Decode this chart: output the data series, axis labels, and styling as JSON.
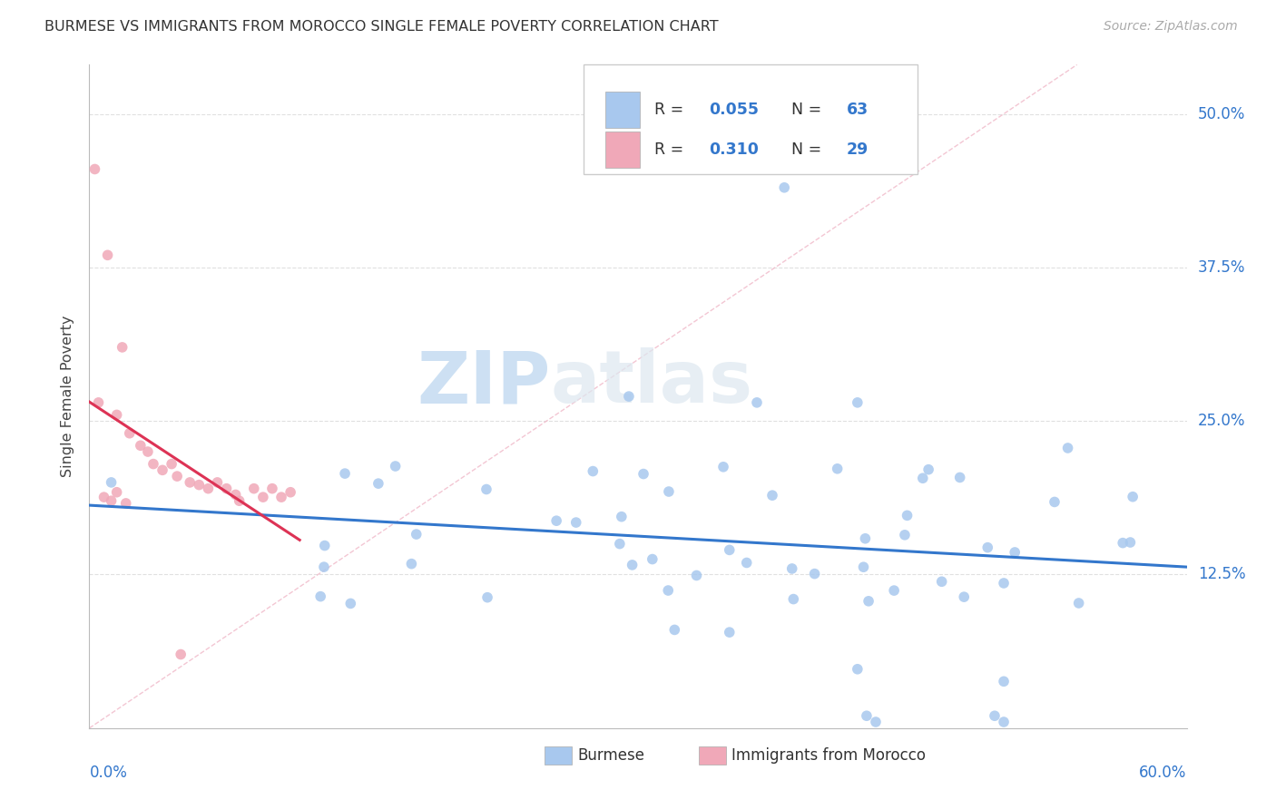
{
  "title": "BURMESE VS IMMIGRANTS FROM MOROCCO SINGLE FEMALE POVERTY CORRELATION CHART",
  "source": "Source: ZipAtlas.com",
  "ylabel": "Single Female Poverty",
  "ytick_vals": [
    0.125,
    0.25,
    0.375,
    0.5
  ],
  "ytick_labels": [
    "12.5%",
    "25.0%",
    "37.5%",
    "50.0%"
  ],
  "xmin": 0.0,
  "xmax": 0.6,
  "ymin": 0.0,
  "ymax": 0.54,
  "legend_r1": "0.055",
  "legend_n1": "63",
  "legend_r2": "0.310",
  "legend_n2": "29",
  "color_burmese_fill": "#a8c8ee",
  "color_morocco_fill": "#f0a8b8",
  "color_burmese_line": "#3377cc",
  "color_morocco_line": "#dd3355",
  "color_diag": "#f0b8c8",
  "color_r_val": "#3377cc",
  "color_grid": "#e0e0e0",
  "watermark_zip": "ZIP",
  "watermark_atlas": "atlas",
  "watermark_color": "#e0e8f0"
}
